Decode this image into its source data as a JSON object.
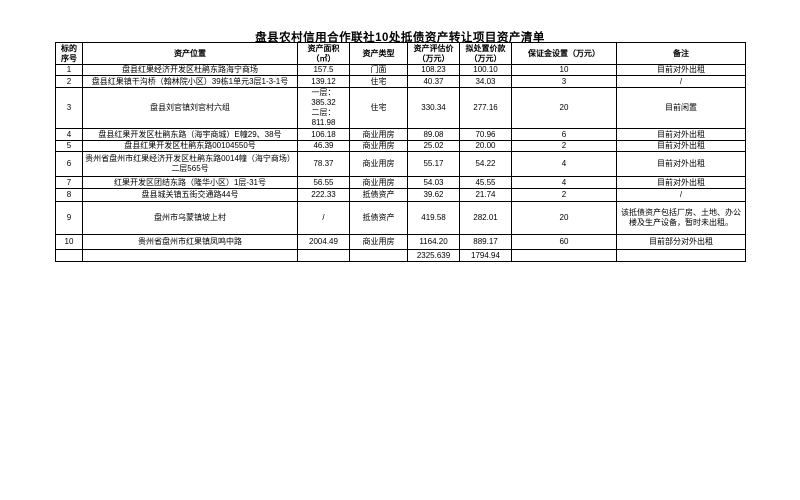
{
  "title": "盘县农村信用合作联社10处抵债资产转让项目资产清单",
  "table": {
    "headers": [
      "标的序号",
      "资产位置",
      "资产面积\n（㎡）",
      "资产类型",
      "资产评估价\n（万元）",
      "拟处置价款\n（万元）",
      "保证金设置（万元）",
      "备注"
    ],
    "column_keys": [
      "seq",
      "location",
      "area",
      "type",
      "appraisal",
      "disposal-price",
      "deposit",
      "remark"
    ],
    "rows": [
      [
        "1",
        "盘县红果经济开发区杜鹃东路海宁商场",
        "157.5",
        "门面",
        "108.23",
        "100.10",
        "10",
        "目前对外出租"
      ],
      [
        "2",
        "盘县红果镇干沟桥（翰林院小区）39栋1单元3层1-3-1号",
        "139.12",
        "住宅",
        "40.37",
        "34.03",
        "3",
        "/"
      ],
      [
        "3",
        "盘县刘官镇刘官村六组",
        "一层：385.32\n二层：811.98",
        "住宅",
        "330.34",
        "277.16",
        "20",
        "目前闲置"
      ],
      [
        "4",
        "盘县红果开发区杜鹃东路（海宇商城）E幢29、38号",
        "106.18",
        "商业用房",
        "89.08",
        "70.96",
        "6",
        "目前对外出租"
      ],
      [
        "5",
        "盘县红果开发区杜鹃东路00104550号",
        "46.39",
        "商业用房",
        "25.02",
        "20.00",
        "2",
        "目前对外出租"
      ],
      [
        "6",
        "贵州省盘州市红果经济开发区杜鹃东路0014幢（海宁商场）二层565号",
        "78.37",
        "商业用房",
        "55.17",
        "54.22",
        "4",
        "目前对外出租"
      ],
      [
        "7",
        "红果开发区团结东路（隆华小区）1层-31号",
        "56.55",
        "商业用房",
        "54.03",
        "45.55",
        "4",
        "目前对外出租"
      ],
      [
        "8",
        "盘县城关镇五街交通路44号",
        "222.33",
        "抵债资产",
        "39.62",
        "21.74",
        "2",
        "/"
      ],
      [
        "9",
        "盘州市乌蒙镇坡上村",
        "/",
        "抵债资产",
        "419.58",
        "282.01",
        "20",
        "该抵债资产包括厂房、土地、办公楼及生产设备，暂时未出租。"
      ],
      [
        "10",
        "贵州省盘州市红果镇凤鸣中路",
        "2004.49",
        "商业用房",
        "1164.20",
        "889.17",
        "60",
        "目前部分对外出租"
      ]
    ],
    "totals_row": [
      "",
      "",
      "",
      "",
      "2325.639",
      "1794.94",
      "",
      ""
    ]
  }
}
